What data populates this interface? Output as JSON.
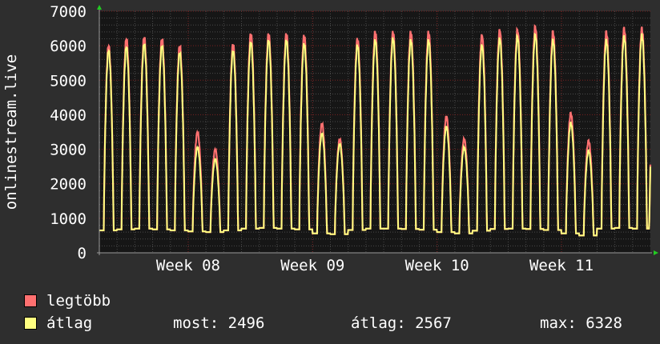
{
  "colors": {
    "background": "#2e2e2e",
    "plot_background": "#161616",
    "grid_major": "#7a2020",
    "grid_minor": "#4a4a4a",
    "max_series": "#ff7070",
    "avg_series": "#ffff80",
    "axis_arrow": "#22cc22",
    "text": "#ffffff"
  },
  "chart_data": {
    "type": "line",
    "ylabel": "onlinestream.live",
    "ylim": [
      0,
      7000
    ],
    "yticks": [
      0,
      1000,
      2000,
      3000,
      4000,
      5000,
      6000,
      7000
    ],
    "ytick_labels": [
      "0",
      "1000",
      "2000",
      "3000",
      "4000",
      "5000",
      "6000",
      "7000"
    ],
    "xtick_labels": [
      "Week 08",
      "Week 09",
      "Week 10",
      "Week 11"
    ],
    "grid": true,
    "x_unit": "day",
    "x_range": [
      0,
      31
    ],
    "x_ticks": [
      5,
      12,
      19,
      26
    ],
    "daily_peaks": {
      "max": [
        5950,
        6150,
        6200,
        6150,
        5950,
        3450,
        2950,
        6000,
        6300,
        6300,
        6300,
        6250,
        3700,
        3250,
        6150,
        6350,
        6350,
        6350,
        6350,
        3900,
        3250,
        6250,
        6400,
        6400,
        6500,
        6350,
        4000,
        3200,
        6350,
        6450,
        6450
      ],
      "avg": [
        5850,
        5950,
        6050,
        6000,
        5800,
        3050,
        2700,
        5850,
        6100,
        6150,
        6150,
        6050,
        3450,
        3150,
        6000,
        6150,
        6200,
        6150,
        6150,
        3650,
        3050,
        6000,
        6200,
        6250,
        6300,
        6150,
        3750,
        2950,
        6150,
        6250,
        6300
      ]
    },
    "daily_troughs": [
      650,
      680,
      700,
      680,
      650,
      620,
      600,
      650,
      700,
      720,
      700,
      680,
      560,
      540,
      660,
      700,
      700,
      690,
      670,
      600,
      560,
      640,
      690,
      700,
      690,
      660,
      560,
      500,
      700,
      720,
      700
    ],
    "end_value": 2496,
    "series": [
      {
        "name": "legtöbb",
        "color": "#ff7070"
      },
      {
        "name": "átlag",
        "color": "#ffff80"
      }
    ]
  },
  "legend": {
    "items": [
      {
        "label": "legtöbb"
      },
      {
        "label": "átlag"
      }
    ],
    "stats": {
      "now": "most: 2496",
      "avg": "átlag: 2567",
      "max": "max: 6328"
    }
  }
}
